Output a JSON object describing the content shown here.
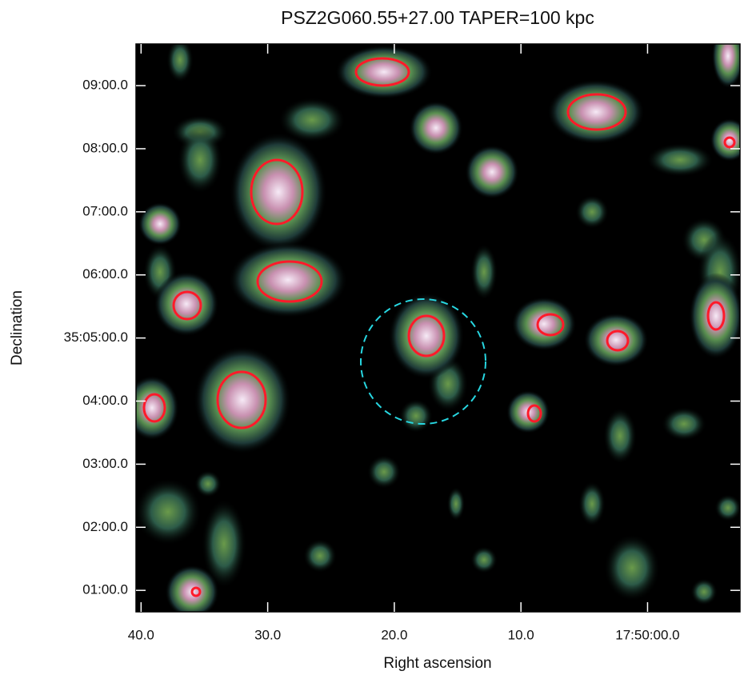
{
  "chart_data": {
    "type": "image",
    "title": "PSZ2G060.55+27.00 TAPER=100 kpc",
    "x_label": "Right ascension",
    "y_label": "Declination",
    "xlim": [
      40.4,
      -7.3
    ],
    "xticks": [
      {
        "value": 40,
        "label": "40.0"
      },
      {
        "value": 30,
        "label": "30.0"
      },
      {
        "value": 20,
        "label": "20.0"
      },
      {
        "value": 10,
        "label": "10.0"
      },
      {
        "value": 0,
        "label": "17:50:00.0"
      }
    ],
    "ylim": [
      0.66,
      9.66
    ],
    "yticks": [
      {
        "value": 1,
        "label": "01:00.0"
      },
      {
        "value": 2,
        "label": "02:00.0"
      },
      {
        "value": 3,
        "label": "03:00.0"
      },
      {
        "value": 4,
        "label": "04:00.0"
      },
      {
        "value": 5,
        "label": "35:05:00.0"
      },
      {
        "value": 6,
        "label": "06:00.0"
      },
      {
        "value": 7,
        "label": "07:00.0"
      },
      {
        "value": 8,
        "label": "08:00.0"
      },
      {
        "value": 9,
        "label": "09:00.0"
      }
    ]
  }
}
